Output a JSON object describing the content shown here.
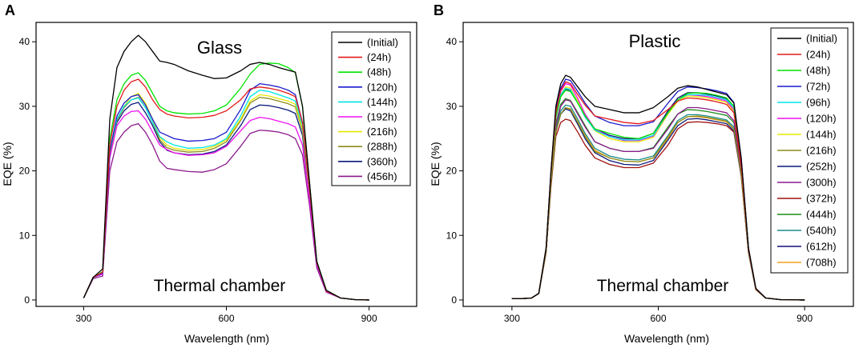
{
  "chart_data": [
    {
      "panel_label": "A",
      "type": "line",
      "title": "Glass",
      "note": "Thermal chamber",
      "xlabel": "Wavelength (nm)",
      "ylabel": "EQE (%)",
      "xlim": [
        200,
        1000
      ],
      "ylim": [
        -1,
        43
      ],
      "xticks": [
        300,
        600,
        900
      ],
      "yticks": [
        0,
        10,
        20,
        30,
        40
      ],
      "legend_position": "top-right",
      "x": [
        300,
        320,
        340,
        355,
        370,
        385,
        400,
        415,
        430,
        445,
        460,
        475,
        490,
        520,
        550,
        575,
        600,
        630,
        650,
        670,
        690,
        710,
        730,
        745,
        760,
        775,
        790,
        810,
        840,
        870,
        900
      ],
      "series": [
        {
          "name": "(Initial)",
          "color": "#000000",
          "values": [
            0.3,
            3.5,
            4.8,
            28.0,
            36.0,
            38.5,
            40.0,
            41.0,
            40.0,
            38.5,
            37.0,
            36.8,
            36.5,
            35.5,
            34.8,
            34.3,
            34.4,
            35.5,
            36.5,
            36.8,
            36.5,
            36.0,
            35.6,
            35.3,
            30.0,
            18.0,
            6.0,
            1.5,
            0.3,
            0.05,
            0.0
          ]
        },
        {
          "name": "(24h)",
          "color": "#e41a1c",
          "values": [
            0.3,
            3.5,
            4.3,
            24.0,
            30.0,
            32.5,
            33.8,
            34.2,
            33.0,
            31.0,
            29.5,
            28.8,
            28.5,
            28.2,
            28.3,
            28.6,
            29.3,
            31.0,
            32.7,
            33.0,
            32.8,
            32.5,
            32.0,
            31.5,
            27.5,
            17.0,
            5.8,
            1.4,
            0.3,
            0.05,
            0.0
          ]
        },
        {
          "name": "(48h)",
          "color": "#00e400",
          "values": [
            0.3,
            3.5,
            4.4,
            25.0,
            31.0,
            33.5,
            34.8,
            35.2,
            34.0,
            32.0,
            30.0,
            29.3,
            29.0,
            28.8,
            28.9,
            29.3,
            30.2,
            32.8,
            35.0,
            36.5,
            36.7,
            36.6,
            36.0,
            35.2,
            30.0,
            18.0,
            6.0,
            1.5,
            0.3,
            0.05,
            0.0
          ]
        },
        {
          "name": "(120h)",
          "color": "#1a1acd",
          "values": [
            0.3,
            3.5,
            4.2,
            23.0,
            28.5,
            30.5,
            31.5,
            31.8,
            30.2,
            28.0,
            26.0,
            25.5,
            25.0,
            24.6,
            24.7,
            25.0,
            26.0,
            29.5,
            32.5,
            33.5,
            33.3,
            33.0,
            32.5,
            31.8,
            27.5,
            17.0,
            5.8,
            1.4,
            0.3,
            0.05,
            0.0
          ]
        },
        {
          "name": "(144h)",
          "color": "#00e5e5",
          "values": [
            0.3,
            3.5,
            4.2,
            23.0,
            28.0,
            30.0,
            31.0,
            31.3,
            29.8,
            27.5,
            25.3,
            24.5,
            24.0,
            23.5,
            23.6,
            24.0,
            25.0,
            28.5,
            31.5,
            32.5,
            32.3,
            31.8,
            31.3,
            30.8,
            27.0,
            16.8,
            5.7,
            1.4,
            0.3,
            0.05,
            0.0
          ]
        },
        {
          "name": "(192h)",
          "color": "#ee11ee",
          "values": [
            0.3,
            3.5,
            4.0,
            22.0,
            27.0,
            28.5,
            29.2,
            29.3,
            28.0,
            26.0,
            24.0,
            23.3,
            22.8,
            22.4,
            22.5,
            22.8,
            23.8,
            26.2,
            27.8,
            28.3,
            28.1,
            27.7,
            27.3,
            26.8,
            24.0,
            15.5,
            5.4,
            1.3,
            0.3,
            0.05,
            0.0
          ]
        },
        {
          "name": "(216h)",
          "color": "#e8e800",
          "values": [
            0.3,
            3.5,
            4.1,
            22.8,
            28.0,
            30.0,
            31.5,
            32.0,
            30.5,
            28.0,
            25.2,
            24.0,
            23.5,
            23.2,
            23.3,
            23.8,
            24.8,
            28.0,
            30.8,
            31.8,
            31.6,
            31.2,
            30.8,
            30.3,
            26.5,
            16.5,
            5.6,
            1.4,
            0.3,
            0.05,
            0.0
          ]
        },
        {
          "name": "(288h)",
          "color": "#8c8c1a",
          "values": [
            0.3,
            3.5,
            4.1,
            22.6,
            27.8,
            29.8,
            31.0,
            31.4,
            29.8,
            27.5,
            24.8,
            23.6,
            23.2,
            22.9,
            23.0,
            23.5,
            24.5,
            27.8,
            30.5,
            31.4,
            31.2,
            30.8,
            30.4,
            29.9,
            26.2,
            16.4,
            5.6,
            1.4,
            0.3,
            0.05,
            0.0
          ]
        },
        {
          "name": "(360h)",
          "color": "#0a1a7a",
          "values": [
            0.3,
            3.5,
            4.0,
            22.4,
            27.5,
            29.3,
            30.3,
            30.6,
            29.0,
            27.0,
            24.5,
            23.2,
            22.8,
            22.5,
            22.6,
            23.0,
            24.0,
            27.0,
            29.5,
            30.2,
            30.1,
            29.8,
            29.4,
            28.9,
            25.5,
            16.0,
            5.5,
            1.4,
            0.3,
            0.05,
            0.0
          ]
        },
        {
          "name": "(456h)",
          "color": "#8b1a8b",
          "values": [
            0.3,
            3.3,
            3.7,
            20.0,
            24.5,
            26.0,
            27.0,
            27.3,
            26.0,
            24.0,
            21.5,
            20.4,
            20.2,
            19.9,
            19.8,
            20.2,
            21.1,
            23.8,
            25.8,
            26.3,
            26.2,
            26.0,
            25.6,
            25.0,
            22.5,
            14.5,
            5.0,
            1.2,
            0.3,
            0.05,
            0.0
          ]
        }
      ]
    },
    {
      "panel_label": "B",
      "type": "line",
      "title": "Plastic",
      "note": "Thermal chamber",
      "xlabel": "Wavelength (nm)",
      "ylabel": "EQE (%)",
      "xlim": [
        200,
        1000
      ],
      "ylim": [
        -1,
        43
      ],
      "xticks": [
        300,
        600,
        900
      ],
      "yticks": [
        0,
        10,
        20,
        30,
        40
      ],
      "legend_position": "top-right",
      "x": [
        300,
        320,
        340,
        355,
        370,
        380,
        390,
        400,
        410,
        420,
        435,
        450,
        470,
        500,
        530,
        560,
        590,
        620,
        640,
        660,
        680,
        700,
        720,
        740,
        755,
        770,
        785,
        800,
        820,
        850,
        900
      ],
      "series": [
        {
          "name": "(Initial)",
          "color": "#000000",
          "values": [
            0.2,
            0.2,
            0.3,
            1.0,
            8.0,
            20.0,
            30.0,
            33.5,
            34.8,
            34.5,
            33.0,
            31.5,
            30.0,
            29.5,
            29.0,
            29.0,
            29.8,
            31.5,
            32.8,
            33.2,
            33.0,
            32.6,
            32.2,
            31.8,
            30.5,
            22.0,
            8.0,
            1.8,
            0.3,
            0.05,
            0.0
          ]
        },
        {
          "name": "(24h)",
          "color": "#e41a1c",
          "values": [
            0.2,
            0.2,
            0.3,
            1.0,
            8.0,
            19.5,
            29.0,
            32.5,
            33.8,
            33.5,
            31.8,
            30.2,
            28.5,
            28.0,
            27.5,
            27.3,
            27.8,
            29.5,
            30.8,
            31.3,
            31.2,
            31.0,
            30.7,
            30.3,
            29.0,
            21.0,
            7.8,
            1.7,
            0.3,
            0.05,
            0.0
          ]
        },
        {
          "name": "(48h)",
          "color": "#00e400",
          "values": [
            0.2,
            0.2,
            0.3,
            1.0,
            8.0,
            19.5,
            28.5,
            31.5,
            32.5,
            32.3,
            30.5,
            28.5,
            26.5,
            25.8,
            25.2,
            25.0,
            25.8,
            29.0,
            31.0,
            32.0,
            32.1,
            32.0,
            31.7,
            31.3,
            30.0,
            21.5,
            7.9,
            1.7,
            0.3,
            0.05,
            0.0
          ]
        },
        {
          "name": "(72h)",
          "color": "#1a1acd",
          "values": [
            0.2,
            0.2,
            0.3,
            1.0,
            8.0,
            19.8,
            29.5,
            32.8,
            34.2,
            34.0,
            32.3,
            30.5,
            28.5,
            27.5,
            27.0,
            27.0,
            27.6,
            30.5,
            32.3,
            33.0,
            32.9,
            32.7,
            32.4,
            32.0,
            30.6,
            22.0,
            8.0,
            1.8,
            0.3,
            0.05,
            0.0
          ]
        },
        {
          "name": "(96h)",
          "color": "#00e5e5",
          "values": [
            0.2,
            0.2,
            0.3,
            1.0,
            8.0,
            19.3,
            28.5,
            31.8,
            32.8,
            32.6,
            30.5,
            28.3,
            26.3,
            25.3,
            24.8,
            24.8,
            25.5,
            29.0,
            31.0,
            31.8,
            31.8,
            31.7,
            31.4,
            31.0,
            29.8,
            21.5,
            7.9,
            1.7,
            0.3,
            0.05,
            0.0
          ]
        },
        {
          "name": "(120h)",
          "color": "#ee11ee",
          "values": [
            0.2,
            0.2,
            0.3,
            1.0,
            8.0,
            19.3,
            28.8,
            32.3,
            33.5,
            33.3,
            31.2,
            28.8,
            26.5,
            25.3,
            24.7,
            24.7,
            25.4,
            29.0,
            31.0,
            31.8,
            31.7,
            31.5,
            31.2,
            30.8,
            29.5,
            21.3,
            7.8,
            1.7,
            0.3,
            0.05,
            0.0
          ]
        },
        {
          "name": "(144h)",
          "color": "#e8e800",
          "values": [
            0.2,
            0.2,
            0.3,
            1.0,
            7.8,
            19.0,
            28.5,
            31.8,
            33.0,
            32.8,
            30.8,
            28.5,
            26.2,
            25.0,
            24.5,
            24.5,
            25.2,
            28.8,
            30.8,
            31.6,
            31.5,
            31.3,
            31.0,
            30.6,
            29.3,
            21.2,
            7.8,
            1.7,
            0.3,
            0.05,
            0.0
          ]
        },
        {
          "name": "(216h)",
          "color": "#8c8c1a",
          "values": [
            0.2,
            0.2,
            0.3,
            1.0,
            7.5,
            18.0,
            26.0,
            28.8,
            29.8,
            29.5,
            27.5,
            25.3,
            23.0,
            22.0,
            21.5,
            21.4,
            22.0,
            25.3,
            27.5,
            28.4,
            28.5,
            28.3,
            28.0,
            27.7,
            26.5,
            19.5,
            7.4,
            1.6,
            0.3,
            0.05,
            0.0
          ]
        },
        {
          "name": "(252h)",
          "color": "#0a1a7a",
          "values": [
            0.2,
            0.2,
            0.3,
            1.0,
            7.5,
            18.0,
            26.0,
            28.8,
            29.6,
            29.3,
            27.2,
            25.0,
            22.8,
            21.6,
            21.0,
            20.9,
            21.6,
            24.8,
            27.0,
            28.0,
            28.1,
            27.9,
            27.6,
            27.3,
            26.2,
            19.3,
            7.3,
            1.6,
            0.3,
            0.05,
            0.0
          ]
        },
        {
          "name": "(300h)",
          "color": "#8b1a8b",
          "values": [
            0.2,
            0.2,
            0.3,
            1.0,
            7.5,
            18.3,
            27.0,
            30.0,
            31.0,
            30.8,
            28.8,
            26.8,
            24.5,
            23.5,
            23.0,
            23.0,
            23.5,
            26.5,
            28.8,
            29.8,
            29.8,
            29.6,
            29.3,
            29.0,
            27.8,
            20.3,
            7.6,
            1.7,
            0.3,
            0.05,
            0.0
          ]
        },
        {
          "name": "(372h)",
          "color": "#a01010",
          "values": [
            0.2,
            0.2,
            0.3,
            1.0,
            7.3,
            17.5,
            25.3,
            27.5,
            28.0,
            27.8,
            26.0,
            24.0,
            22.0,
            21.0,
            20.5,
            20.5,
            21.2,
            24.0,
            26.5,
            27.5,
            27.6,
            27.5,
            27.3,
            27.0,
            26.0,
            19.2,
            7.3,
            1.6,
            0.3,
            0.05,
            0.0
          ]
        },
        {
          "name": "(444h)",
          "color": "#1a8c1a",
          "values": [
            0.2,
            0.2,
            0.3,
            1.0,
            7.5,
            18.3,
            27.3,
            30.3,
            31.2,
            30.9,
            29.0,
            27.0,
            24.5,
            23.5,
            23.0,
            23.0,
            23.6,
            26.8,
            28.8,
            29.5,
            29.4,
            29.2,
            28.9,
            28.6,
            27.5,
            20.1,
            7.5,
            1.7,
            0.3,
            0.05,
            0.0
          ]
        },
        {
          "name": "(540h)",
          "color": "#1a8c8c",
          "values": [
            0.2,
            0.2,
            0.3,
            1.0,
            7.5,
            18.0,
            26.5,
            29.3,
            30.2,
            30.0,
            28.0,
            25.8,
            23.5,
            22.3,
            21.8,
            21.7,
            22.3,
            25.5,
            27.8,
            28.7,
            28.7,
            28.5,
            28.2,
            27.9,
            26.8,
            19.7,
            7.4,
            1.6,
            0.3,
            0.05,
            0.0
          ]
        },
        {
          "name": "(612h)",
          "color": "#10107a",
          "values": [
            0.2,
            0.2,
            0.3,
            1.0,
            7.8,
            19.0,
            28.3,
            31.5,
            32.6,
            32.4,
            30.5,
            28.5,
            26.5,
            25.5,
            25.0,
            25.0,
            25.8,
            29.3,
            31.3,
            32.1,
            32.1,
            31.9,
            31.6,
            31.2,
            29.9,
            21.6,
            7.9,
            1.7,
            0.3,
            0.05,
            0.0
          ]
        },
        {
          "name": "(708h)",
          "color": "#f0a020",
          "values": [
            0.2,
            0.2,
            0.3,
            1.0,
            7.4,
            17.8,
            26.0,
            28.8,
            29.8,
            29.6,
            27.6,
            25.5,
            23.2,
            22.0,
            21.5,
            21.4,
            22.0,
            25.0,
            27.5,
            28.4,
            28.4,
            28.2,
            27.9,
            27.6,
            26.5,
            19.5,
            7.4,
            1.6,
            0.3,
            0.05,
            0.0
          ]
        }
      ]
    }
  ]
}
